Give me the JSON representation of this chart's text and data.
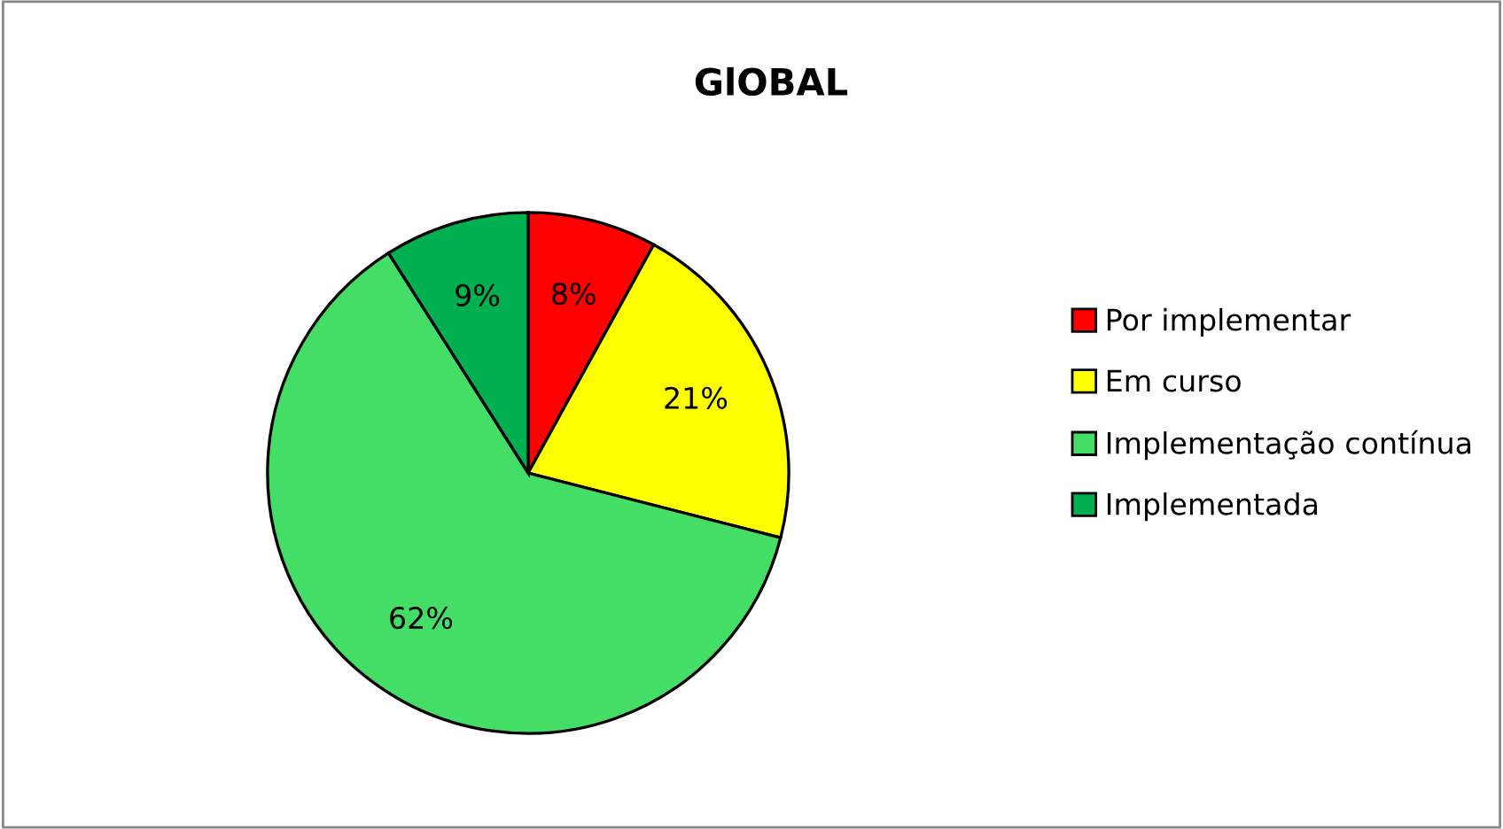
{
  "chart_data": {
    "type": "pie",
    "title": "GlOBAL",
    "categories": [
      "Por implementar",
      "Em curso",
      "Implementação contínua",
      "Implementada"
    ],
    "values": [
      8,
      21,
      62,
      9
    ],
    "colors": [
      "#ff0000",
      "#ffff00",
      "#44dd66",
      "#00b050"
    ],
    "value_labels": [
      "8%",
      "21%",
      "62%",
      "9%"
    ],
    "legend": "right"
  }
}
